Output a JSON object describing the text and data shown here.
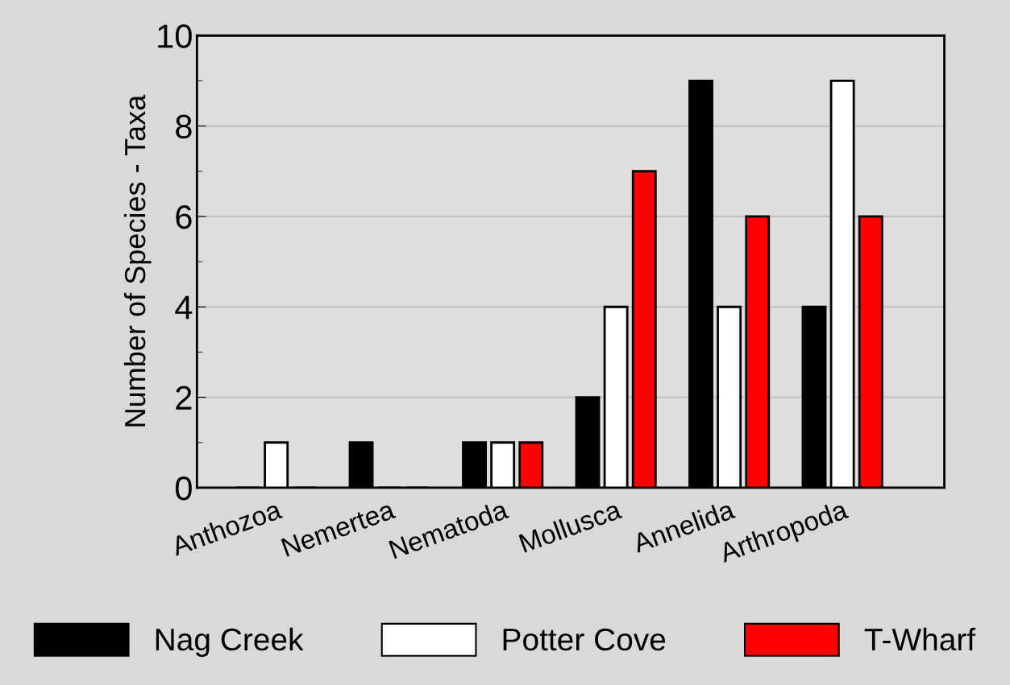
{
  "chart_data": {
    "type": "bar",
    "ylabel": "Number of Species - Taxa",
    "categories": [
      "Anthozoa",
      "Nemertea",
      "Nematoda",
      "Mollusca",
      "Annelida",
      "Arthropoda"
    ],
    "series": [
      {
        "name": "Nag Creek",
        "color": "#000000",
        "values": [
          0,
          1,
          1,
          2,
          9,
          4
        ]
      },
      {
        "name": "Potter Cove",
        "color": "#ffffff",
        "values": [
          1,
          0,
          1,
          4,
          4,
          9
        ]
      },
      {
        "name": "T-Wharf",
        "color": "#ff0000",
        "values": [
          0,
          0,
          1,
          7,
          6,
          6
        ]
      }
    ],
    "ylim": [
      0,
      10
    ],
    "yticks": [
      0,
      2,
      4,
      6,
      8,
      10
    ],
    "grid": "y",
    "legend": "bottom"
  }
}
